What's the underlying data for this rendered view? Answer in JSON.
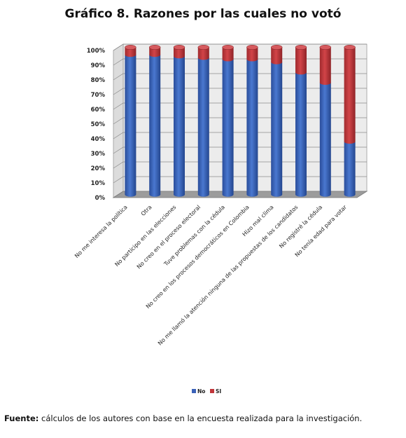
{
  "chart_data": {
    "type": "bar",
    "stacked": true,
    "three_d": true,
    "title": "Gráfico 8. Razones por las cuales no votó",
    "categories": [
      "No me interesa la política",
      "Otra",
      "No participo en las elecciones",
      "No creo en el proceso electoral",
      "Tuve problemas con la cédula",
      "No creo en los procesos democráticos en Colombia",
      "Hizo mal clima",
      "No me llamó la atención ninguna de las propuestas de los candidatos",
      "No registré la cédula",
      "No tenía edad para votar"
    ],
    "series": [
      {
        "name": "No",
        "color": "#3b62b8",
        "values": [
          95,
          95,
          94,
          93,
          92,
          92,
          90,
          83,
          76,
          36
        ]
      },
      {
        "name": "SI",
        "color": "#c0363a",
        "values": [
          5,
          5,
          6,
          7,
          8,
          8,
          10,
          17,
          24,
          64
        ]
      }
    ],
    "yticks": [
      "0%",
      "10%",
      "20%",
      "30%",
      "40%",
      "50%",
      "60%",
      "70%",
      "80%",
      "90%",
      "100%"
    ],
    "ylim": [
      0,
      100
    ],
    "grid": true,
    "legend": "bottom"
  },
  "source": {
    "label": "Fuente:",
    "text": " cálculos de los autores con base en la encuesta realizada para la investigación."
  }
}
